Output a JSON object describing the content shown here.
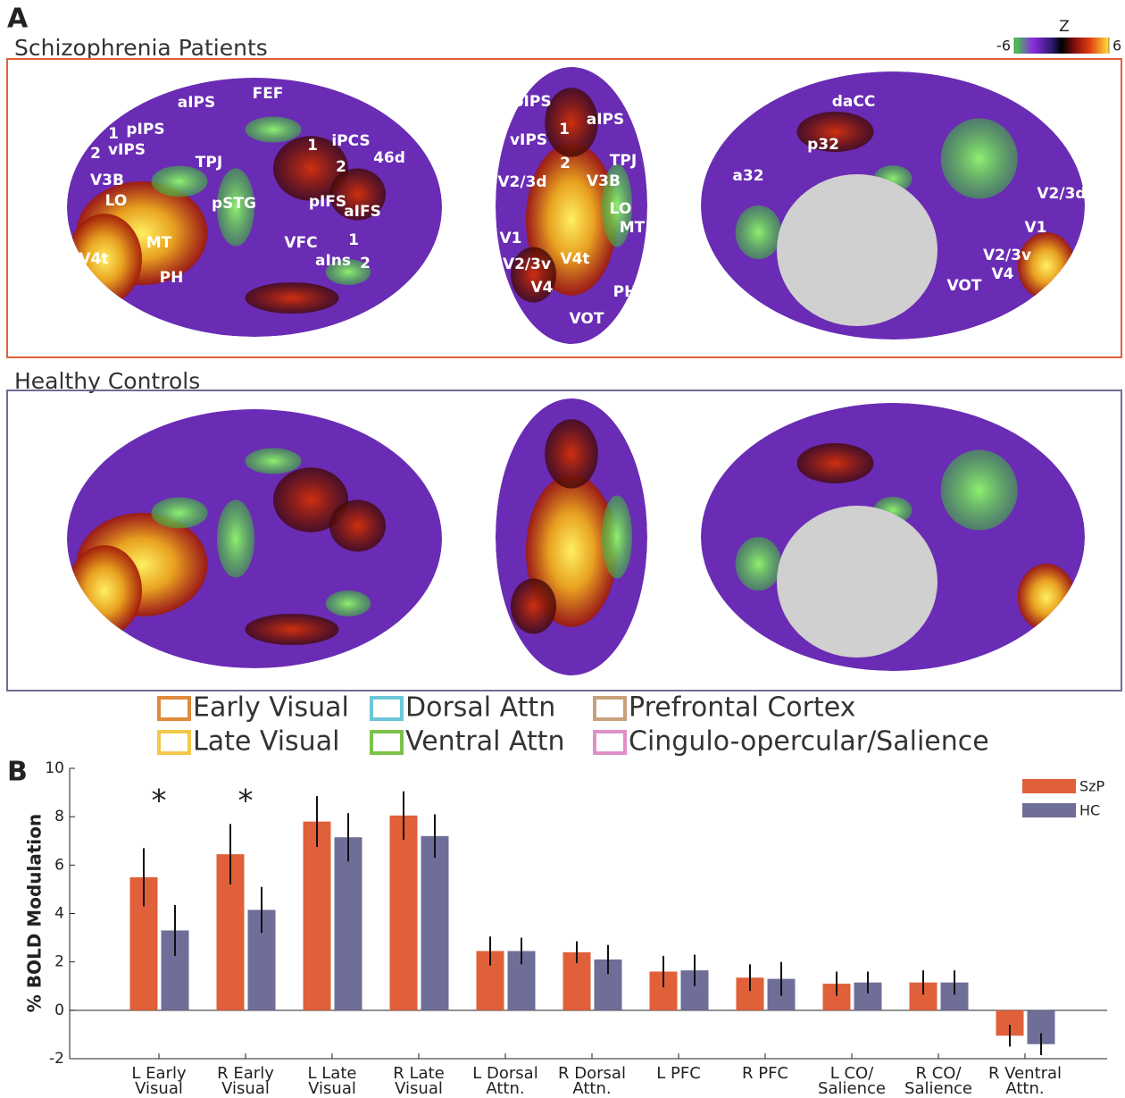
{
  "panel_a": {
    "label": "A",
    "groups": [
      {
        "title": "Schizophrenia Patients",
        "lateral_labels": [
          "aIPS",
          "pIPS",
          "1",
          "vIPS",
          "2",
          "V3B",
          "LO",
          "TPJ",
          "pSTG",
          "MT",
          "V4t",
          "PH",
          "FEF",
          "1",
          "iPCS",
          "2",
          "46d",
          "pIFS",
          "aIFS",
          "VFC",
          "1",
          "aIns",
          "2"
        ],
        "posterior_labels": [
          "pIPS",
          "aIPS",
          "1",
          "vIPS",
          "2",
          "TPJ",
          "V2/3d",
          "V3B",
          "LO",
          "MT",
          "V1",
          "V2/3v",
          "V4t",
          "V4",
          "PH",
          "VOT"
        ],
        "medial_labels": [
          "daCC",
          "p32",
          "a32",
          "V2/3d",
          "V1",
          "V2/3v",
          "V4",
          "VOT"
        ]
      },
      {
        "title": "Healthy Controls"
      }
    ],
    "colorbar": {
      "title": "Z",
      "ticks": [
        -6,
        6
      ]
    },
    "legend": [
      "Early Visual",
      "Late Visual",
      "Dorsal Attn",
      "Ventral Attn",
      "Prefrontal Cortex",
      "Cingulo-opercular/Salience"
    ]
  },
  "chart_data": {
    "type": "bar",
    "panel_label": "B",
    "y_label": "% BOLD Modulation",
    "categories": [
      "L Early Visual",
      "R Early Visual",
      "L Late Visual",
      "R Late Visual",
      "L Dorsal Attn.",
      "R Dorsal Attn.",
      "L PFC",
      "R PFC",
      "L CO/ Salience",
      "R CO/ Salience",
      "R Ventral Attn."
    ],
    "series": [
      {
        "name": "SzP",
        "color": "#e0603a",
        "values": [
          5.5,
          6.45,
          7.8,
          8.05,
          2.45,
          2.4,
          1.6,
          1.35,
          1.1,
          1.15,
          -1.05
        ],
        "errors": [
          1.2,
          1.25,
          1.05,
          1.0,
          0.6,
          0.45,
          0.65,
          0.55,
          0.5,
          0.5,
          0.45
        ]
      },
      {
        "name": "HC",
        "color": "#6e6e98",
        "values": [
          3.3,
          4.15,
          7.15,
          7.2,
          2.45,
          2.1,
          1.65,
          1.3,
          1.15,
          1.15,
          -1.4
        ],
        "errors": [
          1.05,
          0.95,
          1.0,
          0.9,
          0.55,
          0.6,
          0.65,
          0.7,
          0.45,
          0.5,
          0.45
        ]
      }
    ],
    "significance": [
      "*",
      "*",
      null,
      null,
      null,
      null,
      null,
      null,
      null,
      null,
      null
    ],
    "ylim": [
      -2,
      10
    ],
    "yticks": [
      -2,
      0,
      2,
      4,
      6,
      8,
      10
    ],
    "legend": "upper right"
  }
}
